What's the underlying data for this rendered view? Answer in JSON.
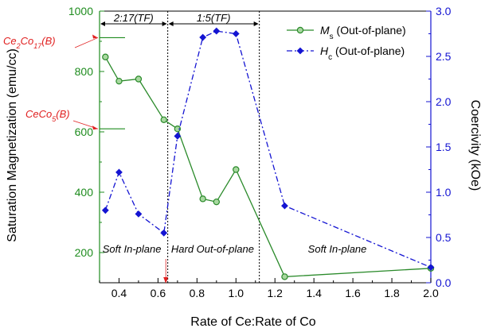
{
  "chart_data": {
    "type": "line",
    "title": "",
    "xlabel": "Rate of Ce:Rate of Co",
    "ylabel_left": "Saturation Magnetization (emu/cc)",
    "ylabel_right": "Coercivity (kOe)",
    "xlim": [
      0.3,
      2.0
    ],
    "ylim_left": [
      100,
      1000
    ],
    "ylim_right": [
      0.0,
      3.0
    ],
    "x_ticks": [
      "0.4",
      "0.6",
      "0.8",
      "1.0",
      "1.2",
      "1.4",
      "1.6",
      "1.8",
      "2.0"
    ],
    "y_left_ticks": [
      "200",
      "400",
      "600",
      "800",
      "1000"
    ],
    "y_right_ticks": [
      "0.0",
      "0.5",
      "1.0",
      "1.5",
      "2.0",
      "2.5",
      "3.0"
    ],
    "colors": {
      "left_axis": "#1e8c1e",
      "right_axis": "#1414d2",
      "annotation": "#e02020"
    },
    "series": [
      {
        "name_main": "M",
        "name_sub": "s",
        "name_rest": " (Out-of-plane)",
        "axis": "left",
        "color": "#2a8a2a",
        "marker": "circle",
        "style": "solid",
        "x": [
          0.33,
          0.4,
          0.5,
          0.63,
          0.7,
          0.83,
          0.9,
          1.0,
          1.25,
          2.0
        ],
        "y": [
          848,
          768,
          775,
          640,
          610,
          378,
          368,
          475,
          120,
          148
        ]
      },
      {
        "name_main": "H",
        "name_sub": "c",
        "name_rest": " (Out-of-plane)",
        "axis": "right",
        "color": "#1414d2",
        "marker": "diamond",
        "style": "dashdot",
        "x": [
          0.33,
          0.4,
          0.5,
          0.63,
          0.7,
          0.83,
          0.9,
          1.0,
          1.25,
          2.0
        ],
        "y": [
          0.8,
          1.22,
          0.76,
          0.55,
          1.62,
          2.71,
          2.78,
          2.75,
          0.85,
          0.17
        ]
      }
    ],
    "regions": [
      {
        "label": "2:17(TF)",
        "x_start": 0.3,
        "x_end": 0.65,
        "bottom_label": "Soft In-plane"
      },
      {
        "label": "1:5(TF)",
        "x_start": 0.65,
        "x_end": 1.12,
        "bottom_label": "Hard Out-of-plane"
      },
      {
        "label": "",
        "x_start": 1.12,
        "x_end": 2.0,
        "bottom_label": "Soft In-plane"
      }
    ],
    "reference_lines": [
      {
        "main": "Ce",
        "sub1": "2",
        "mid": "Co",
        "sub2": "17",
        "suffix": "(B)",
        "y": 912
      },
      {
        "main": "CeCo",
        "sub1": "5",
        "mid": "",
        "sub2": "",
        "suffix": "(B)",
        "y": 610
      }
    ],
    "arrow_marker_x": 0.64,
    "legend_position": "top-right"
  }
}
